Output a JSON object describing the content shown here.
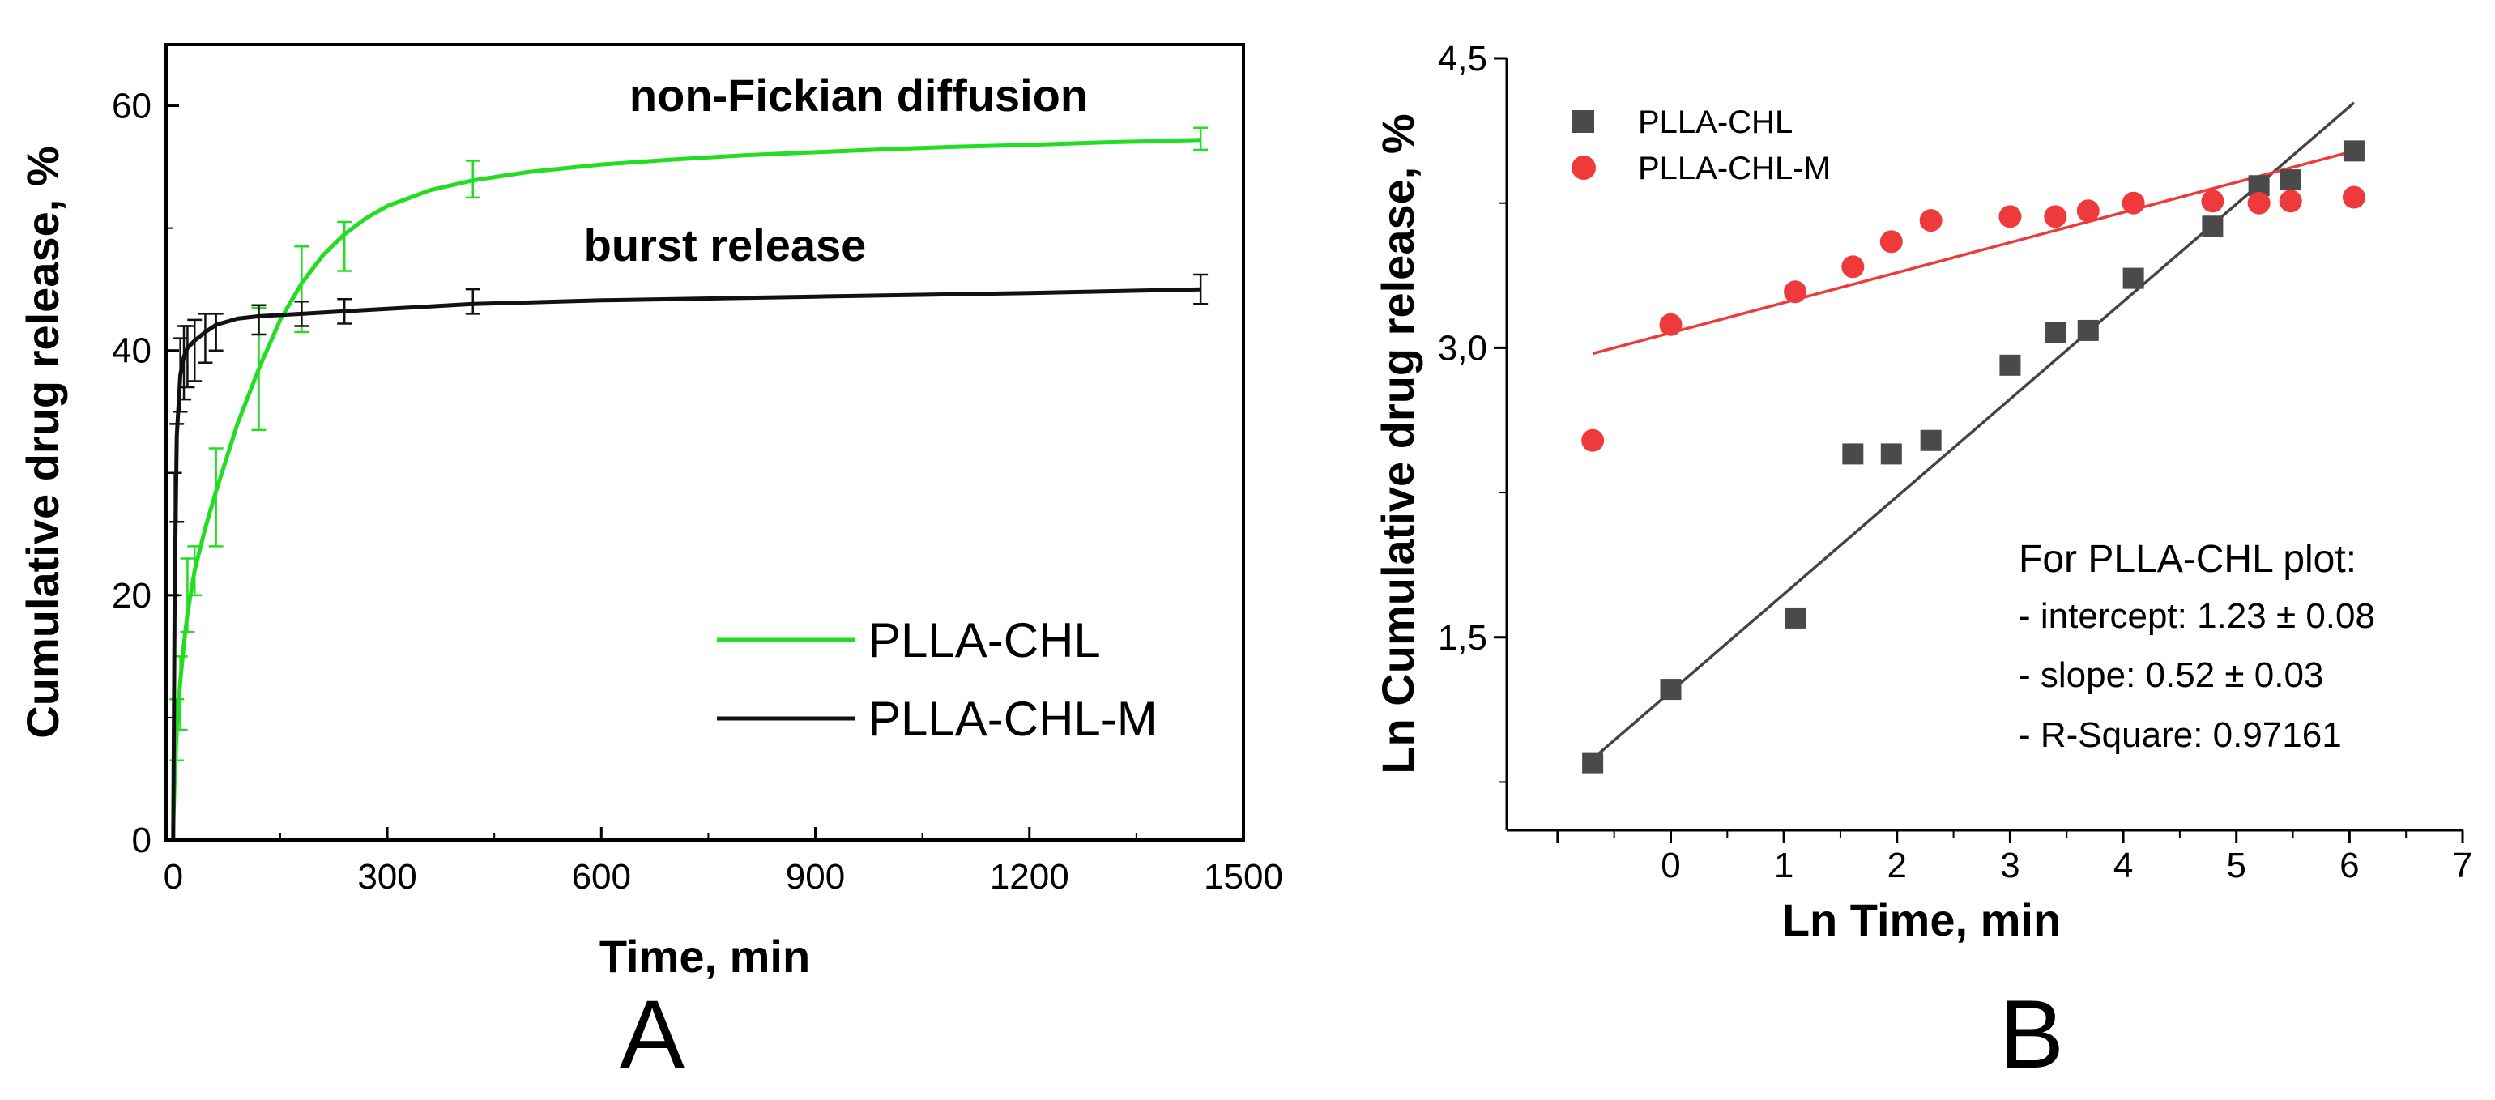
{
  "chart_data": [
    {
      "panel": "A",
      "type": "line",
      "xlabel": "Time, min",
      "ylabel": "Cumulative drug release, %",
      "xlim": [
        -10,
        1500
      ],
      "ylim": [
        0,
        65
      ],
      "xticks": [
        0,
        300,
        600,
        900,
        1200,
        1500
      ],
      "yticks": [
        0,
        20,
        40,
        60
      ],
      "legend_position": "bottom-right",
      "annotations": [
        "non-Fickian diffusion",
        "burst release"
      ],
      "series": [
        {
          "name": "PLLA-CHL",
          "color": "#22dd22",
          "curve_x": [
            0,
            2,
            5,
            10,
            15,
            20,
            30,
            45,
            60,
            90,
            120,
            150,
            180,
            210,
            240,
            270,
            300,
            360,
            420,
            500,
            600,
            700,
            800,
            900,
            1000,
            1100,
            1200,
            1300,
            1440
          ],
          "curve_y": [
            1,
            5,
            9,
            13,
            16,
            18.5,
            22,
            25.5,
            28.5,
            34,
            38.5,
            42.5,
            45.5,
            47.8,
            49.5,
            50.8,
            51.8,
            53.1,
            53.9,
            54.6,
            55.2,
            55.6,
            55.95,
            56.2,
            56.45,
            56.65,
            56.8,
            57,
            57.2
          ],
          "error_points": [
            {
              "x": 5,
              "y": 9,
              "err": 2.5
            },
            {
              "x": 10,
              "y": 12,
              "err": 3
            },
            {
              "x": 20,
              "y": 20,
              "err": 3
            },
            {
              "x": 30,
              "y": 22,
              "err": 2
            },
            {
              "x": 60,
              "y": 28,
              "err": 4
            },
            {
              "x": 120,
              "y": 38.5,
              "err": 5
            },
            {
              "x": 180,
              "y": 45,
              "err": 3.5
            },
            {
              "x": 240,
              "y": 48.5,
              "err": 2
            },
            {
              "x": 420,
              "y": 54,
              "err": 1.5
            },
            {
              "x": 1440,
              "y": 57.3,
              "err": 0.9
            }
          ]
        },
        {
          "name": "PLLA-CHL-M",
          "color": "#111111",
          "curve_x": [
            0,
            2,
            5,
            10,
            15,
            20,
            30,
            45,
            60,
            90,
            120,
            180,
            240,
            300,
            420,
            600,
            900,
            1200,
            1440
          ],
          "curve_y": [
            0,
            20,
            33,
            38,
            39.5,
            40.2,
            40.8,
            41.5,
            42.1,
            42.6,
            42.8,
            43,
            43.2,
            43.4,
            43.8,
            44.1,
            44.4,
            44.7,
            45
          ],
          "error_points": [
            {
              "x": 2,
              "y": 25,
              "err": 5
            },
            {
              "x": 5,
              "y": 30,
              "err": 4
            },
            {
              "x": 10,
              "y": 38,
              "err": 3
            },
            {
              "x": 15,
              "y": 39,
              "err": 3
            },
            {
              "x": 20,
              "y": 39.5,
              "err": 2.5
            },
            {
              "x": 30,
              "y": 40,
              "err": 2.5
            },
            {
              "x": 45,
              "y": 41,
              "err": 2
            },
            {
              "x": 60,
              "y": 41.5,
              "err": 1.5
            },
            {
              "x": 120,
              "y": 42.5,
              "err": 1.2
            },
            {
              "x": 180,
              "y": 43,
              "err": 1
            },
            {
              "x": 240,
              "y": 43.2,
              "err": 1
            },
            {
              "x": 420,
              "y": 44,
              "err": 1
            },
            {
              "x": 1440,
              "y": 45,
              "err": 1.2
            }
          ]
        }
      ]
    },
    {
      "panel": "B",
      "type": "scatter",
      "xlabel": "Ln Time, min",
      "ylabel": "Ln Cumulative drug release, %",
      "xlim": [
        -1.45,
        7
      ],
      "ylim": [
        0.5,
        4.5
      ],
      "xticks": [
        0,
        1,
        2,
        3,
        4,
        5,
        6,
        7
      ],
      "yticks": [
        "1,5",
        "3,0",
        "4,5"
      ],
      "ytick_values": [
        1.5,
        3.0,
        4.5
      ],
      "legend_position": "top-left",
      "series": [
        {
          "name": "PLLA-CHL",
          "marker": "square",
          "color": "#4a4a4a",
          "x": [
            -0.69,
            0,
            1.1,
            1.61,
            1.95,
            2.3,
            3.0,
            3.4,
            3.69,
            4.09,
            4.79,
            5.2,
            5.48,
            6.04
          ],
          "y": [
            0.85,
            1.23,
            1.6,
            2.45,
            2.45,
            2.52,
            2.91,
            3.08,
            3.09,
            3.36,
            3.63,
            3.84,
            3.87,
            4.02
          ],
          "fit": {
            "x": [
              -0.69,
              6.04
            ],
            "y": [
              0.87,
              4.27
            ],
            "color": "#444444"
          }
        },
        {
          "name": "PLLA-CHL-M",
          "marker": "circle",
          "color": "#ee3a3a",
          "x": [
            -0.69,
            0,
            1.1,
            1.61,
            1.95,
            2.3,
            3.0,
            3.4,
            3.69,
            4.09,
            4.79,
            5.2,
            5.48,
            6.04
          ],
          "y": [
            2.52,
            3.12,
            3.29,
            3.42,
            3.55,
            3.66,
            3.68,
            3.68,
            3.71,
            3.75,
            3.76,
            3.75,
            3.76,
            3.78
          ],
          "fit": {
            "x": [
              -0.69,
              6.04
            ],
            "y": [
              2.97,
              4.02
            ],
            "color": "#ee3a3a"
          }
        }
      ],
      "stats": {
        "heading": "For PLLA-CHL plot:",
        "lines": [
          "- intercept: 1.23 ± 0.08",
          "- slope: 0.52 ± 0.03",
          "- R-Square: 0.97161"
        ]
      }
    }
  ]
}
